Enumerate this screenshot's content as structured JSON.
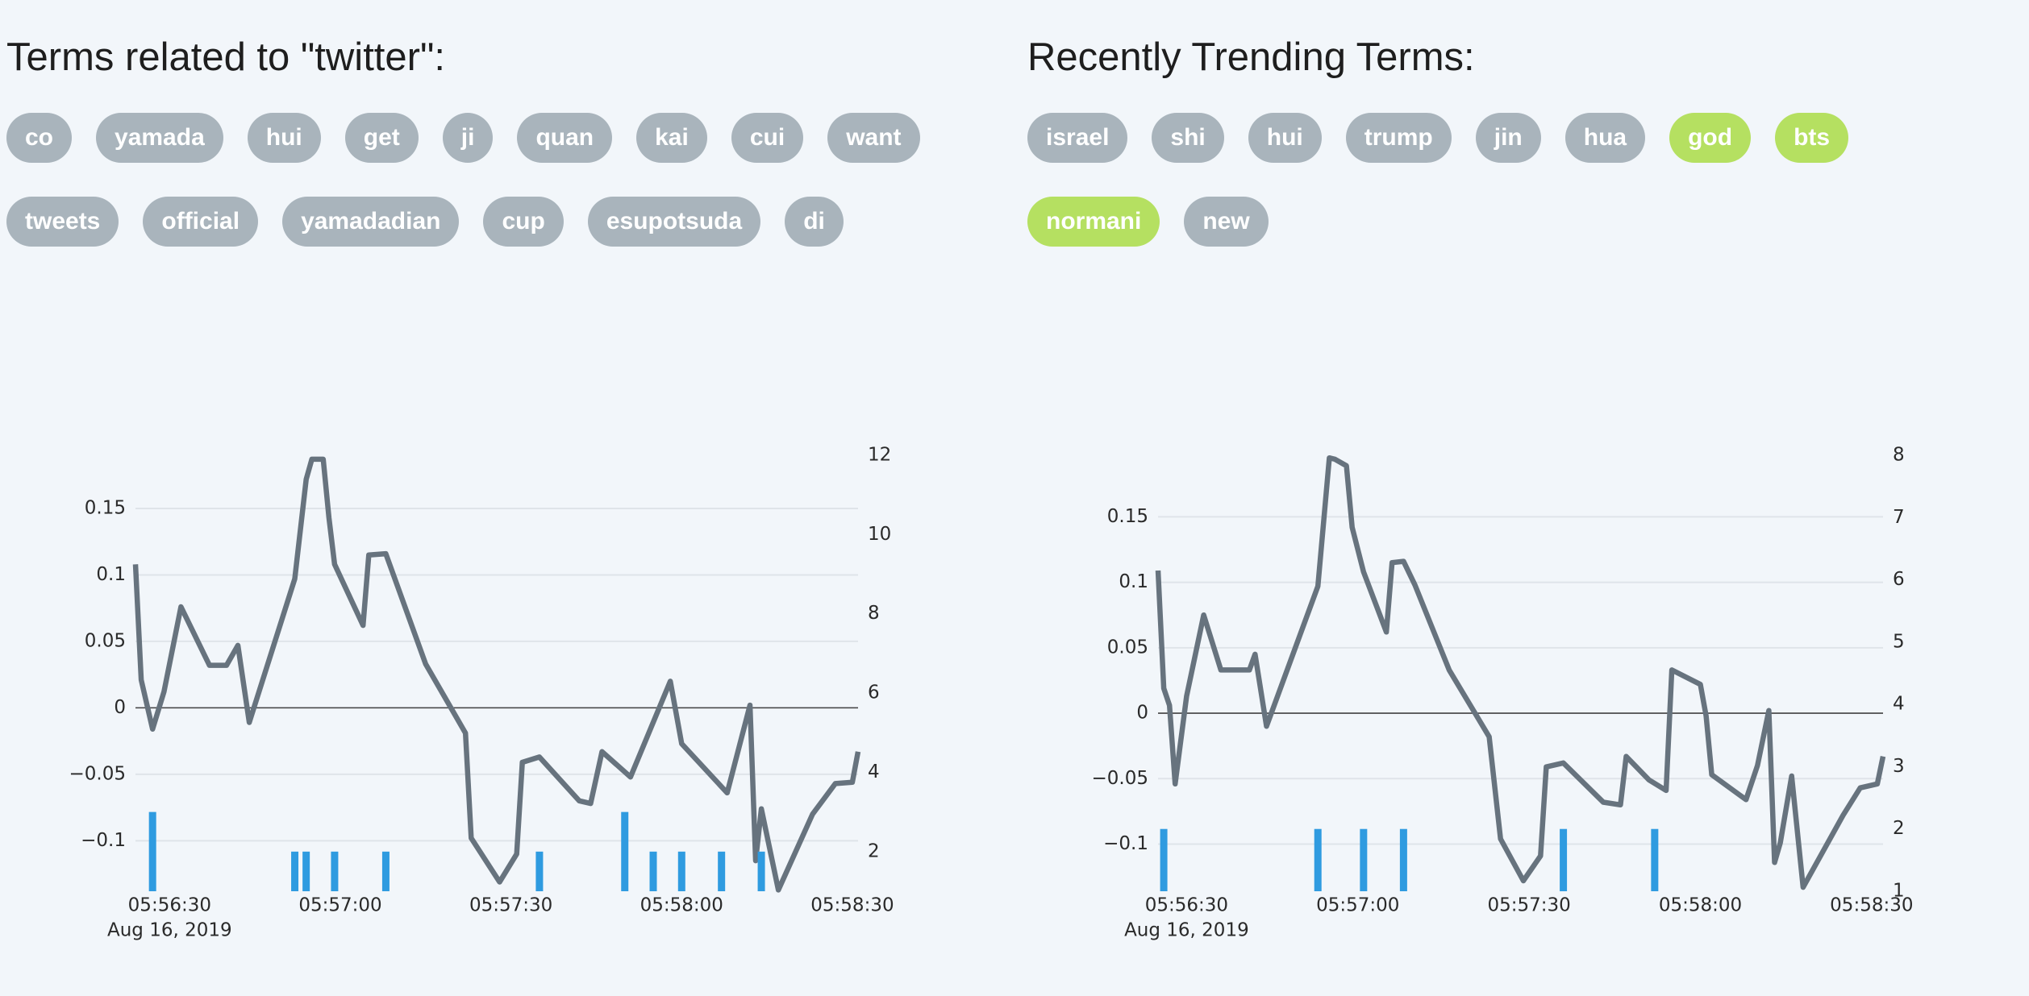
{
  "panels": [
    {
      "title": "Terms related to \"twitter\":",
      "terms": [
        [
          {
            "label": "co",
            "color": "#a9b4bc"
          },
          {
            "label": "yamada",
            "color": "#a9b4bc"
          },
          {
            "label": "hui",
            "color": "#a9b4bc"
          },
          {
            "label": "get",
            "color": "#a9b4bc"
          },
          {
            "label": "ji",
            "color": "#a9b4bc"
          },
          {
            "label": "quan",
            "color": "#a9b4bc"
          },
          {
            "label": "kai",
            "color": "#a9b4bc"
          },
          {
            "label": "cui",
            "color": "#a9b4bc"
          },
          {
            "label": "want",
            "color": "#a9b4bc"
          }
        ],
        [
          {
            "label": "tweets",
            "color": "#a9b4bc"
          },
          {
            "label": "official",
            "color": "#a9b4bc"
          },
          {
            "label": "yamadadian",
            "color": "#a9b4bc"
          },
          {
            "label": "cup",
            "color": "#a9b4bc"
          },
          {
            "label": "esupotsuda",
            "color": "#a9b4bc"
          },
          {
            "label": "di",
            "color": "#a9b4bc"
          }
        ]
      ]
    },
    {
      "title": "Recently Trending Terms:",
      "terms": [
        [
          {
            "label": "israel",
            "color": "#a9b4bc"
          },
          {
            "label": "shi",
            "color": "#a9b4bc"
          },
          {
            "label": "hui",
            "color": "#a9b4bc"
          },
          {
            "label": "trump",
            "color": "#a9b4bc"
          },
          {
            "label": "jin",
            "color": "#a9b4bc"
          },
          {
            "label": "hua",
            "color": "#a9b4bc"
          },
          {
            "label": "god",
            "color": "#b5e061"
          },
          {
            "label": "bts",
            "color": "#b5e061"
          }
        ],
        [
          {
            "label": "normani",
            "color": "#b5e061"
          },
          {
            "label": "new",
            "color": "#a9b4bc"
          }
        ]
      ]
    }
  ],
  "chart_data": [
    {
      "type": "line",
      "zeroline": true,
      "grid": true,
      "x_date_label": "Aug 16, 2019",
      "xlim": [
        "2019-08-16T05:56:24",
        "2019-08-16T05:58:31"
      ],
      "xticks": [
        {
          "value": "2019-08-16T05:56:30",
          "label": "05:56:30"
        },
        {
          "value": "2019-08-16T05:57:00",
          "label": "05:57:00"
        },
        {
          "value": "2019-08-16T05:57:30",
          "label": "05:57:30"
        },
        {
          "value": "2019-08-16T05:58:00",
          "label": "05:58:00"
        },
        {
          "value": "2019-08-16T05:58:30",
          "label": "05:58:30"
        }
      ],
      "ylim": [
        -0.138,
        0.19
      ],
      "yticks": [
        {
          "value": -0.1,
          "label": "−0.1"
        },
        {
          "value": -0.05,
          "label": "−0.05"
        },
        0,
        0.05,
        0.1,
        0.15
      ],
      "y2lim": [
        1,
        12
      ],
      "y2ticks": [
        2,
        4,
        6,
        8,
        10,
        12
      ],
      "series": [
        {
          "type": "line",
          "color": "#67737e",
          "x": [
            "2019-08-16T05:56:24",
            "2019-08-16T05:56:25",
            "2019-08-16T05:56:27",
            "2019-08-16T05:56:29",
            "2019-08-16T05:56:32",
            "2019-08-16T05:56:37",
            "2019-08-16T05:56:40",
            "2019-08-16T05:56:42",
            "2019-08-16T05:56:44",
            "2019-08-16T05:56:52",
            "2019-08-16T05:56:54",
            "2019-08-16T05:56:55",
            "2019-08-16T05:56:57",
            "2019-08-16T05:56:58",
            "2019-08-16T05:56:59",
            "2019-08-16T05:57:04",
            "2019-08-16T05:57:05",
            "2019-08-16T05:57:08",
            "2019-08-16T05:57:15",
            "2019-08-16T05:57:22",
            "2019-08-16T05:57:23",
            "2019-08-16T05:57:28",
            "2019-08-16T05:57:31",
            "2019-08-16T05:57:32",
            "2019-08-16T05:57:35",
            "2019-08-16T05:57:42",
            "2019-08-16T05:57:44",
            "2019-08-16T05:57:46",
            "2019-08-16T05:57:51",
            "2019-08-16T05:57:58",
            "2019-08-16T05:58:00",
            "2019-08-16T05:58:08",
            "2019-08-16T05:58:12",
            "2019-08-16T05:58:13",
            "2019-08-16T05:58:14",
            "2019-08-16T05:58:17",
            "2019-08-16T05:58:23",
            "2019-08-16T05:58:27",
            "2019-08-16T05:58:30",
            "2019-08-16T05:58:31"
          ],
          "values": [
            0.108,
            0.021,
            -0.016,
            0.012,
            0.076,
            0.032,
            0.032,
            0.047,
            -0.011,
            0.097,
            0.172,
            0.187,
            0.187,
            0.143,
            0.108,
            0.062,
            0.115,
            0.116,
            0.033,
            -0.019,
            -0.098,
            -0.131,
            -0.11,
            -0.041,
            -0.037,
            -0.07,
            -0.072,
            -0.033,
            -0.052,
            0.02,
            -0.027,
            -0.064,
            0.002,
            -0.115,
            -0.076,
            -0.137,
            -0.08,
            -0.057,
            -0.056,
            -0.033
          ]
        },
        {
          "type": "bar",
          "axis": "y2",
          "color": "#2f9be0",
          "x": [
            "2019-08-16T05:56:27",
            "2019-08-16T05:56:52",
            "2019-08-16T05:56:54",
            "2019-08-16T05:56:59",
            "2019-08-16T05:57:08",
            "2019-08-16T05:57:35",
            "2019-08-16T05:57:50",
            "2019-08-16T05:57:55",
            "2019-08-16T05:58:00",
            "2019-08-16T05:58:07",
            "2019-08-16T05:58:14"
          ],
          "values": [
            3,
            2,
            2,
            2,
            2,
            2,
            3,
            2,
            2,
            2,
            2
          ]
        }
      ]
    },
    {
      "type": "line",
      "zeroline": true,
      "grid": true,
      "x_date_label": "Aug 16, 2019",
      "xlim": [
        "2019-08-16T05:56:25",
        "2019-08-16T05:58:32"
      ],
      "xticks": [
        {
          "value": "2019-08-16T05:56:30",
          "label": "05:56:30"
        },
        {
          "value": "2019-08-16T05:57:00",
          "label": "05:57:00"
        },
        {
          "value": "2019-08-16T05:57:30",
          "label": "05:57:30"
        },
        {
          "value": "2019-08-16T05:58:00",
          "label": "05:58:00"
        },
        {
          "value": "2019-08-16T05:58:30",
          "label": "05:58:30"
        }
      ],
      "ylim": [
        -0.136,
        0.197
      ],
      "yticks": [
        {
          "value": -0.1,
          "label": "−0.1"
        },
        {
          "value": -0.05,
          "label": "−0.05"
        },
        0,
        0.05,
        0.1,
        0.15
      ],
      "y2lim": [
        1,
        8
      ],
      "y2ticks": [
        1,
        2,
        3,
        4,
        5,
        6,
        7,
        8
      ],
      "series": [
        {
          "type": "line",
          "color": "#67737e",
          "x": [
            "2019-08-16T05:56:25",
            "2019-08-16T05:56:26",
            "2019-08-16T05:56:27",
            "2019-08-16T05:56:28",
            "2019-08-16T05:56:30",
            "2019-08-16T05:56:33",
            "2019-08-16T05:56:36",
            "2019-08-16T05:56:41",
            "2019-08-16T05:56:42",
            "2019-08-16T05:56:44",
            "2019-08-16T05:56:53",
            "2019-08-16T05:56:55",
            "2019-08-16T05:56:56",
            "2019-08-16T05:56:58",
            "2019-08-16T05:56:59",
            "2019-08-16T05:57:01",
            "2019-08-16T05:57:05",
            "2019-08-16T05:57:06",
            "2019-08-16T05:57:08",
            "2019-08-16T05:57:10",
            "2019-08-16T05:57:16",
            "2019-08-16T05:57:23",
            "2019-08-16T05:57:25",
            "2019-08-16T05:57:29",
            "2019-08-16T05:57:32",
            "2019-08-16T05:57:33",
            "2019-08-16T05:57:36",
            "2019-08-16T05:57:43",
            "2019-08-16T05:57:46",
            "2019-08-16T05:57:47",
            "2019-08-16T05:57:51",
            "2019-08-16T05:57:54",
            "2019-08-16T05:57:55",
            "2019-08-16T05:58:00",
            "2019-08-16T05:58:01",
            "2019-08-16T05:58:02",
            "2019-08-16T05:58:08",
            "2019-08-16T05:58:10",
            "2019-08-16T05:58:12",
            "2019-08-16T05:58:13",
            "2019-08-16T05:58:14",
            "2019-08-16T05:58:16",
            "2019-08-16T05:58:18",
            "2019-08-16T05:58:25",
            "2019-08-16T05:58:28",
            "2019-08-16T05:58:31",
            "2019-08-16T05:58:32"
          ],
          "values": [
            0.109,
            0.019,
            0.006,
            -0.054,
            0.013,
            0.075,
            0.033,
            0.033,
            0.045,
            -0.01,
            0.097,
            0.195,
            0.194,
            0.189,
            0.142,
            0.108,
            0.062,
            0.115,
            0.116,
            0.098,
            0.033,
            -0.018,
            -0.096,
            -0.128,
            -0.109,
            -0.041,
            -0.038,
            -0.068,
            -0.07,
            -0.033,
            -0.051,
            -0.059,
            0.033,
            0.022,
            -0.002,
            -0.047,
            -0.066,
            -0.04,
            0.002,
            -0.114,
            -0.099,
            -0.048,
            -0.133,
            -0.078,
            -0.057,
            -0.054,
            -0.033
          ]
        },
        {
          "type": "bar",
          "axis": "y2",
          "color": "#2f9be0",
          "x": [
            "2019-08-16T05:56:26",
            "2019-08-16T05:56:53",
            "2019-08-16T05:57:01",
            "2019-08-16T05:57:08",
            "2019-08-16T05:57:36",
            "2019-08-16T05:57:52"
          ],
          "values": [
            2,
            2,
            2,
            2,
            2,
            2
          ]
        }
      ]
    }
  ]
}
